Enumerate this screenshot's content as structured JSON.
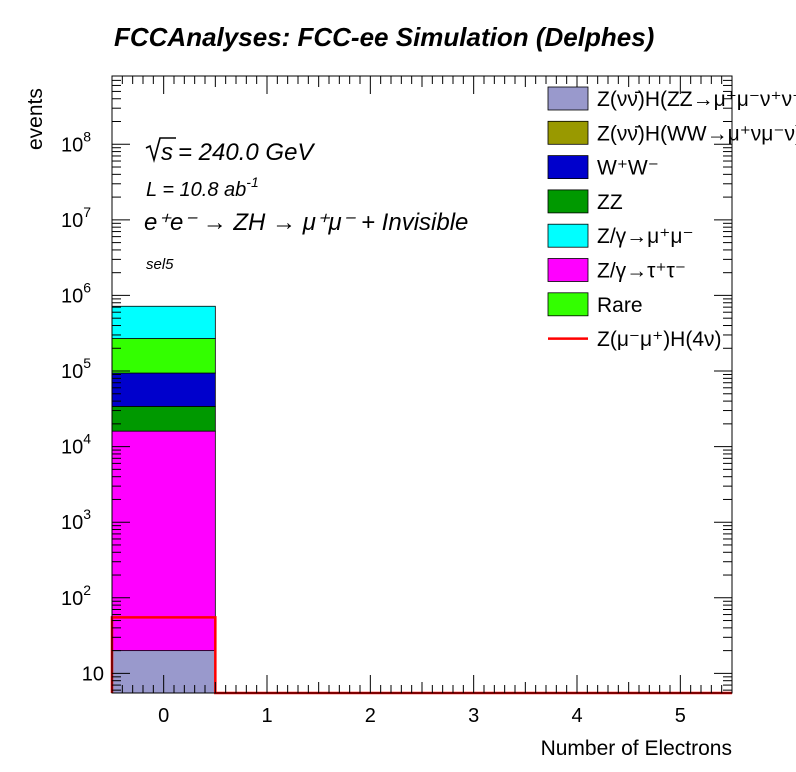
{
  "chart_data": {
    "type": "bar",
    "stacked": true,
    "title": "FCCAnalyses: FCC-ee Simulation (Delphes)",
    "xlabel": "Number of Electrons",
    "ylabel": "events",
    "y_scale": "log",
    "ylim": [
      5.5,
      800000000
    ],
    "xlim": [
      -0.5,
      5.5
    ],
    "x_ticks": [
      "0",
      "1",
      "2",
      "3",
      "4",
      "5"
    ],
    "y_ticks": [
      {
        "value": 10,
        "base": "10",
        "exp": ""
      },
      {
        "value": 100,
        "base": "10",
        "exp": "2"
      },
      {
        "value": 1000,
        "base": "10",
        "exp": "3"
      },
      {
        "value": 10000,
        "base": "10",
        "exp": "4"
      },
      {
        "value": 100000,
        "base": "10",
        "exp": "5"
      },
      {
        "value": 1000000,
        "base": "10",
        "exp": "6"
      },
      {
        "value": 10000000,
        "base": "10",
        "exp": "7"
      },
      {
        "value": 100000000,
        "base": "10",
        "exp": "8"
      }
    ],
    "categories": [
      "0"
    ],
    "stack_series": [
      {
        "name": "Z(νν̄)H(ZZ→μ⁺μ⁻ν⁺ν⁻)",
        "color": "#9999cc",
        "values": [
          20
        ]
      },
      {
        "name": "Z(νν̄)H(WW→μ⁺νμ⁻ν)",
        "color": "#999900",
        "values": [
          0
        ]
      },
      {
        "name": "Z/γ→τ⁺τ⁻",
        "color": "#ff00ff",
        "values": [
          16000
        ]
      },
      {
        "name": "ZZ",
        "color": "#009900",
        "values": [
          18000
        ]
      },
      {
        "name": "W⁺W⁻",
        "color": "#0000cc",
        "values": [
          60000
        ]
      },
      {
        "name": "Rare",
        "color": "#33ff00",
        "values": [
          175000
        ]
      },
      {
        "name": "Z/γ→μ⁺μ⁻",
        "color": "#00ffff",
        "values": [
          450000
        ]
      }
    ],
    "signal": {
      "name": "Z(μ⁻μ⁺)H(4ν)",
      "color": "#ff0000",
      "values": [
        55,
        0,
        0,
        0,
        0,
        0
      ]
    },
    "legend_position": "top-right",
    "annotations": {
      "sqrt_s": "= 240.0 GeV",
      "lumi_label": "L = 10.8 ab",
      "lumi_exp": "-1",
      "process": "e⁺e⁻ → ZH → μ⁺μ⁻ + Invisible",
      "selection": "sel5"
    }
  },
  "legend": [
    {
      "label": "Z(νν̄)H(ZZ→μ⁺μ⁻ν⁺ν⁻)",
      "color": "#9999cc",
      "kind": "box"
    },
    {
      "label": "Z(νν̄)H(WW→μ⁺νμ⁻ν)",
      "color": "#999900",
      "kind": "box"
    },
    {
      "label": "W⁺W⁻",
      "color": "#0000cc",
      "kind": "box"
    },
    {
      "label": "ZZ",
      "color": "#009900",
      "kind": "box"
    },
    {
      "label": "Z/γ→μ⁺μ⁻",
      "color": "#00ffff",
      "kind": "box"
    },
    {
      "label": "Z/γ→τ⁺τ⁻",
      "color": "#ff00ff",
      "kind": "box"
    },
    {
      "label": "Rare",
      "color": "#33ff00",
      "kind": "box"
    },
    {
      "label": "Z(μ⁻μ⁺)H(4ν)",
      "color": "#ff0000",
      "kind": "line"
    }
  ]
}
